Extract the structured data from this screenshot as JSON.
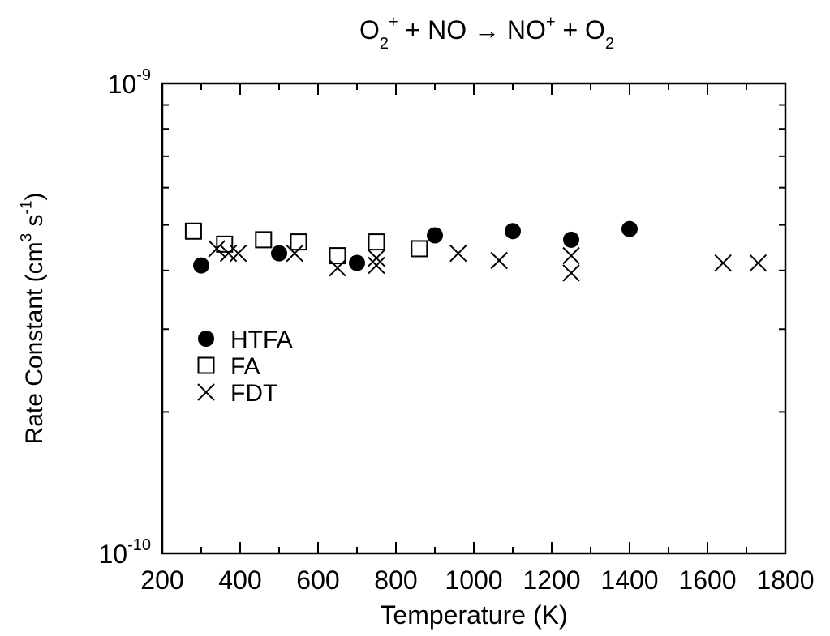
{
  "chart_data": {
    "type": "scatter",
    "title": {
      "parts": [
        {
          "text": "O",
          "style": "normal"
        },
        {
          "text": "2",
          "style": "sub"
        },
        {
          "text": "+",
          "style": "sup"
        },
        {
          "text": " + NO ",
          "style": "normal"
        },
        {
          "text": "→",
          "style": "normal"
        },
        {
          "text": " NO",
          "style": "normal"
        },
        {
          "text": "+",
          "style": "sup"
        },
        {
          "text": " + O",
          "style": "normal"
        },
        {
          "text": "2",
          "style": "sub"
        }
      ]
    },
    "xlabel": "Temperature (K)",
    "ylabel": {
      "parts": [
        {
          "text": "Rate Constant (cm",
          "style": "normal"
        },
        {
          "text": "3",
          "style": "sup"
        },
        {
          "text": " s",
          "style": "normal"
        },
        {
          "text": "-1",
          "style": "sup"
        },
        {
          "text": ")",
          "style": "normal"
        }
      ]
    },
    "xlim": [
      200,
      1800
    ],
    "ylim": [
      1e-10,
      1e-09
    ],
    "yscale": "log",
    "x_ticks": [
      200,
      400,
      600,
      800,
      1000,
      1200,
      1400,
      1600,
      1800
    ],
    "x_tick_labels": [
      "200",
      "400",
      "600",
      "800",
      "1000",
      "1200",
      "1400",
      "1600",
      "1800"
    ],
    "y_tick_labels": [
      {
        "base": "10",
        "exp": "-10",
        "value": 1e-10
      },
      {
        "base": "10",
        "exp": "-9",
        "value": 1e-09
      }
    ],
    "legend_position": "left-middle",
    "series": [
      {
        "name": "HTFA",
        "marker": "filled-circle",
        "points": [
          [
            300,
            4.1e-10
          ],
          [
            500,
            4.35e-10
          ],
          [
            700,
            4.15e-10
          ],
          [
            900,
            4.75e-10
          ],
          [
            1100,
            4.85e-10
          ],
          [
            1250,
            4.65e-10
          ],
          [
            1400,
            4.9e-10
          ]
        ]
      },
      {
        "name": "FA",
        "marker": "open-square",
        "points": [
          [
            280,
            4.85e-10
          ],
          [
            360,
            4.55e-10
          ],
          [
            460,
            4.65e-10
          ],
          [
            550,
            4.6e-10
          ],
          [
            650,
            4.3e-10
          ],
          [
            750,
            4.6e-10
          ],
          [
            860,
            4.45e-10
          ]
        ]
      },
      {
        "name": "FDT",
        "marker": "x",
        "points": [
          [
            340,
            4.45e-10
          ],
          [
            370,
            4.35e-10
          ],
          [
            395,
            4.35e-10
          ],
          [
            540,
            4.35e-10
          ],
          [
            650,
            4.05e-10
          ],
          [
            750,
            4.1e-10
          ],
          [
            750,
            4.25e-10
          ],
          [
            960,
            4.35e-10
          ],
          [
            1065,
            4.2e-10
          ],
          [
            1250,
            4.3e-10
          ],
          [
            1250,
            3.95e-10
          ],
          [
            1640,
            4.15e-10
          ],
          [
            1730,
            4.15e-10
          ]
        ]
      }
    ]
  }
}
